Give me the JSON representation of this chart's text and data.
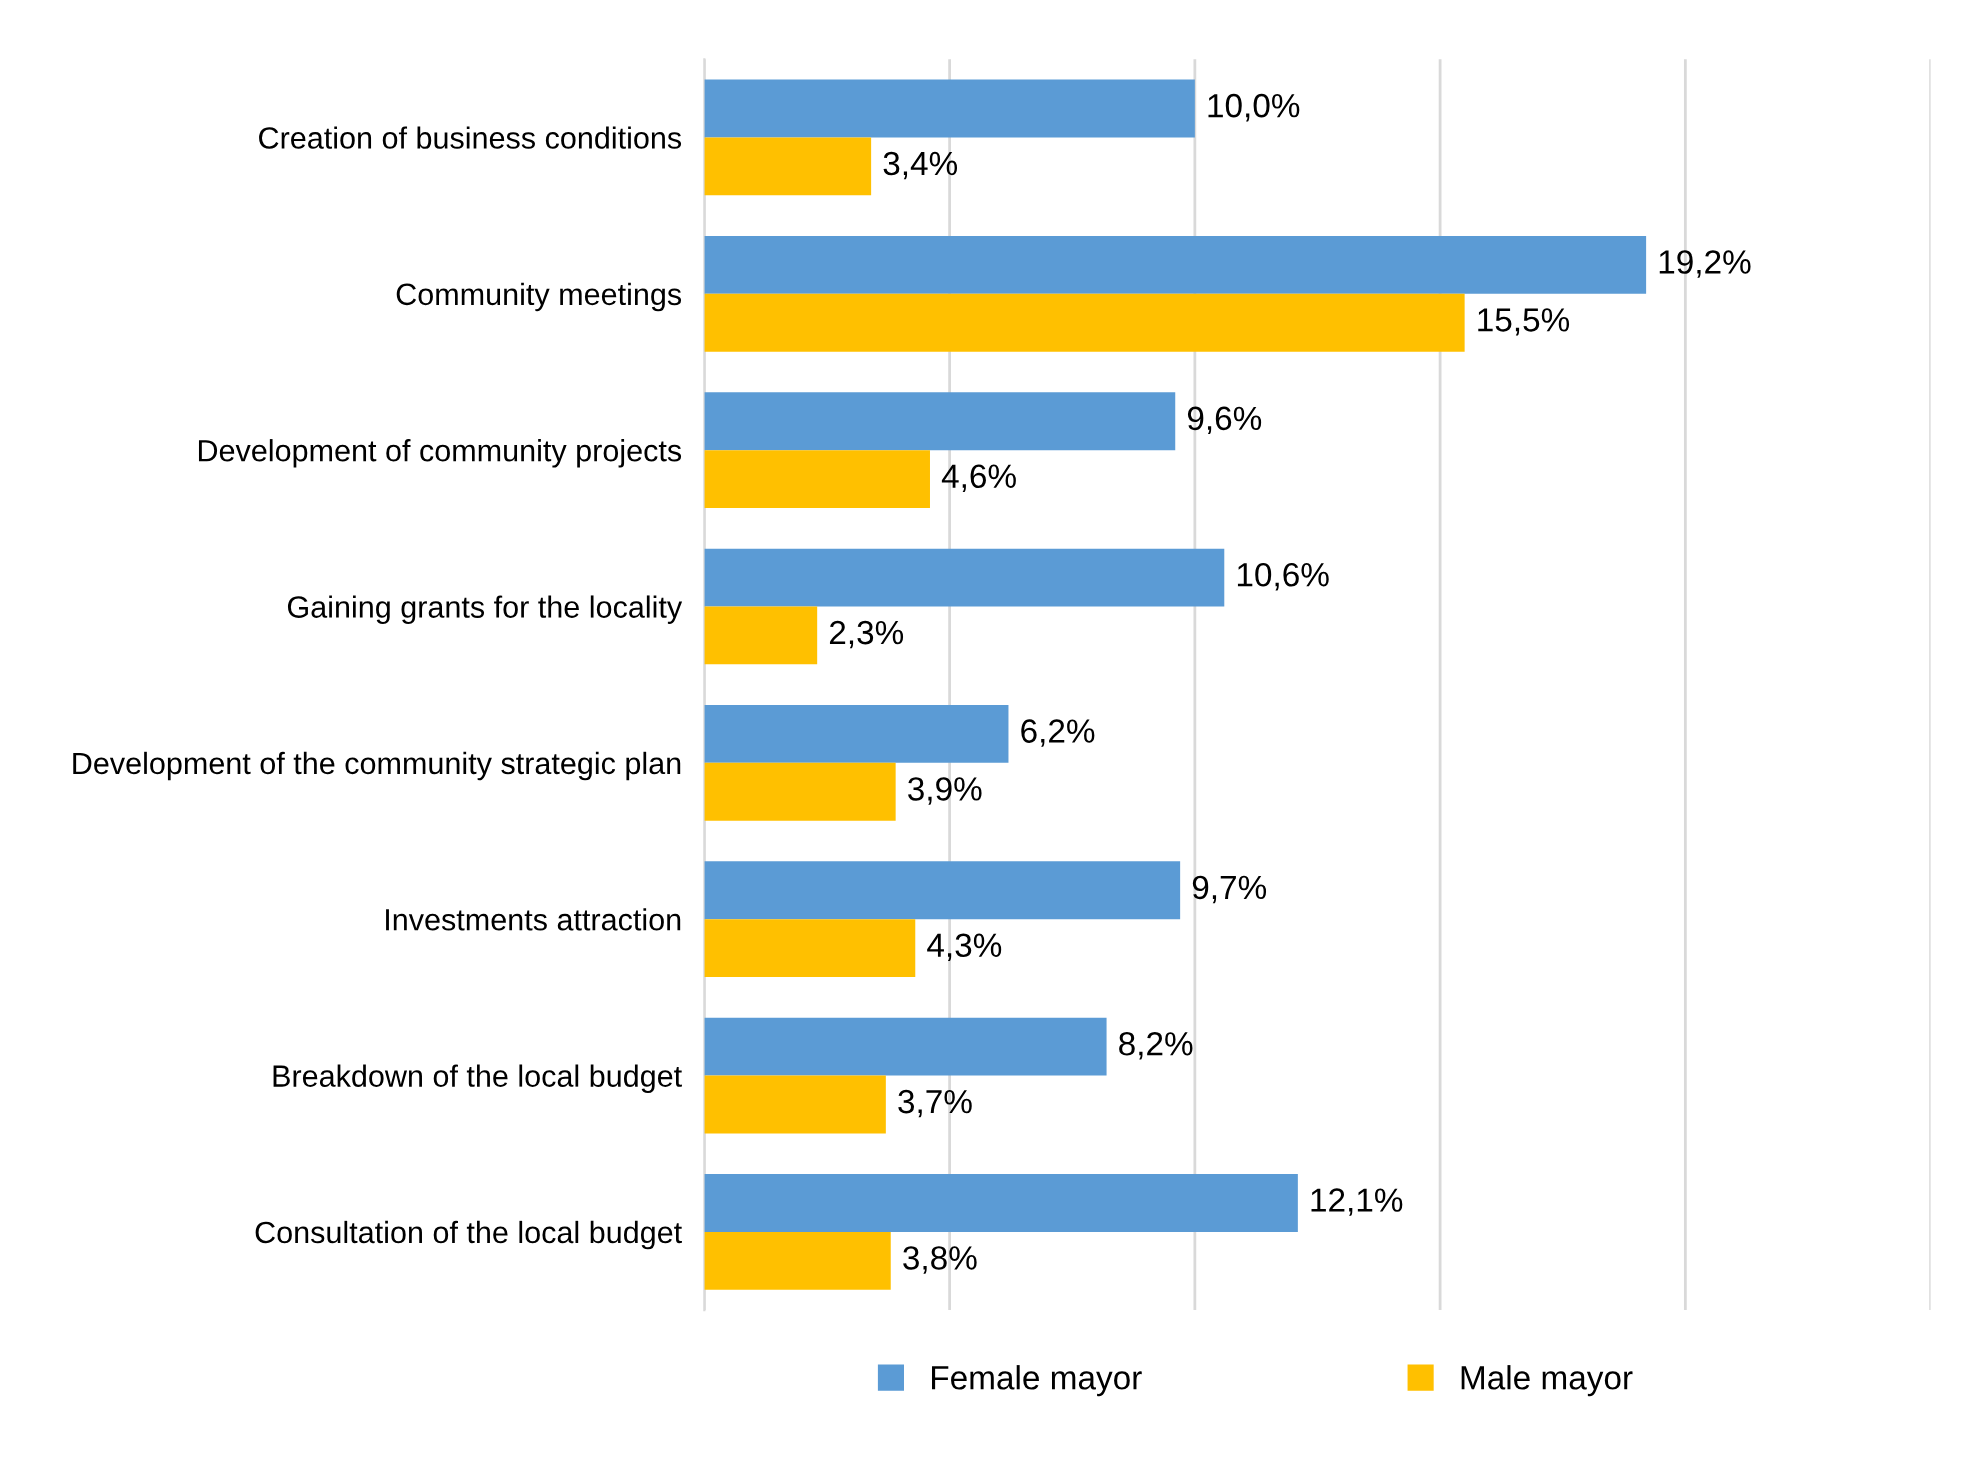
{
  "chart_data": {
    "type": "bar",
    "orientation": "horizontal",
    "categories": [
      "Creation of business conditions",
      "Community meetings",
      "Development of community projects",
      "Gaining grants for the locality",
      "Development of the community strategic plan",
      "Investments attraction",
      "Breakdown of the local budget",
      "Consultation of the local budget"
    ],
    "series": [
      {
        "name": "Female mayor",
        "color": "#5b9bd5",
        "values": [
          10.0,
          19.2,
          9.6,
          10.6,
          6.2,
          9.7,
          8.2,
          12.1
        ],
        "value_labels": [
          "10,0%",
          "19,2%",
          "9,6%",
          "10,6%",
          "6,2%",
          "9,7%",
          "8,2%",
          "12,1%"
        ]
      },
      {
        "name": "Male mayor",
        "color": "#ffc000",
        "values": [
          3.4,
          15.5,
          4.6,
          2.3,
          3.9,
          4.3,
          3.7,
          3.8
        ],
        "value_labels": [
          "3,4%",
          "15,5%",
          "4,6%",
          "2,3%",
          "3,9%",
          "4,3%",
          "3,7%",
          "3,8%"
        ]
      }
    ],
    "xlim": [
      0,
      25
    ],
    "xticks": [
      {
        "value": 0,
        "label": null
      },
      {
        "value": 5,
        "label": null
      },
      {
        "value": 10,
        "label": null
      },
      {
        "value": 15,
        "label": null
      },
      {
        "value": 20,
        "label": null
      },
      {
        "value": 25,
        "label": null
      }
    ],
    "tick_labels": "y",
    "grid": "x",
    "legend": "bottom"
  }
}
